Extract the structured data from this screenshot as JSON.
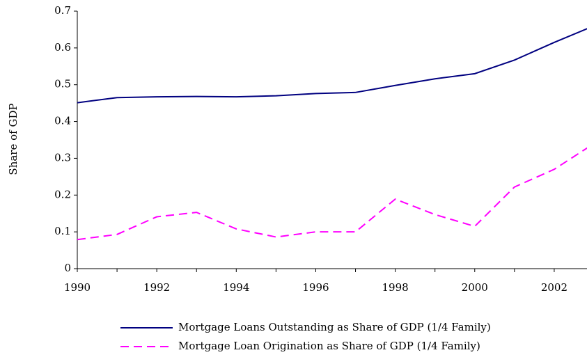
{
  "chart_data": {
    "type": "line",
    "ylabel": "Share of GDP",
    "x": [
      1990,
      1991,
      1992,
      1993,
      1994,
      1995,
      1996,
      1997,
      1998,
      1999,
      2000,
      2001,
      2002,
      2003
    ],
    "series": [
      {
        "name": "Mortgage Loans Outstanding as Share of GDP (1/4 Family)",
        "color": "#000080",
        "dash": false,
        "values": [
          0.451,
          0.465,
          0.467,
          0.468,
          0.467,
          0.47,
          0.476,
          0.479,
          0.498,
          0.516,
          0.53,
          0.567,
          0.615,
          0.66
        ]
      },
      {
        "name": "Mortgage Loan Origination as Share of GDP (1/4 Family)",
        "color": "#ff00ff",
        "dash": true,
        "values": [
          0.079,
          0.093,
          0.141,
          0.153,
          0.108,
          0.086,
          0.1,
          0.1,
          0.189,
          0.147,
          0.115,
          0.222,
          0.27,
          0.34
        ]
      }
    ],
    "xlim": [
      1990,
      2003
    ],
    "xticks": [
      1990,
      1992,
      1994,
      1996,
      1998,
      2000,
      2002
    ],
    "ylim": [
      0,
      0.7
    ],
    "yticks": [
      0,
      0.1,
      0.2,
      0.3,
      0.4,
      0.5,
      0.6,
      0.7
    ],
    "grid": false,
    "legend": "bottom"
  }
}
